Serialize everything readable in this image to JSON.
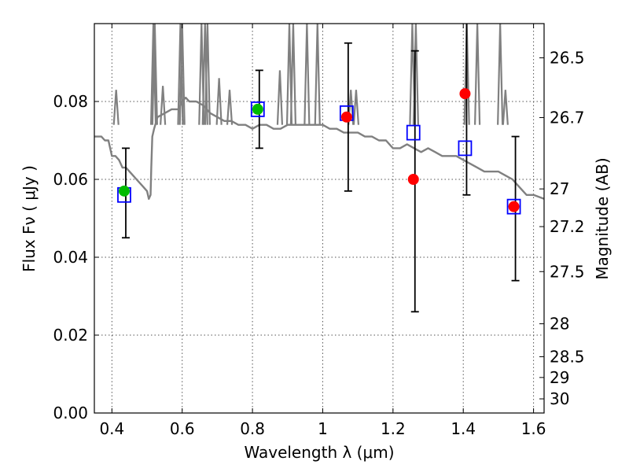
{
  "chart_data": {
    "type": "scatter",
    "title": "",
    "xlabel": "Wavelength  λ (μm)",
    "ylabel": "Flux  Fν  ( μJy )",
    "y2label": "Magnitude (AB)",
    "xlim": [
      0.35,
      1.63
    ],
    "ylim": [
      0.0,
      0.1
    ],
    "grid": true,
    "x_ticks": [
      0.4,
      0.6,
      0.8,
      1.0,
      1.2,
      1.4,
      1.6
    ],
    "x_tick_labels": [
      "0.4",
      "0.6",
      "0.8",
      "1",
      "1.2",
      "1.4",
      "1.6"
    ],
    "y_ticks": [
      0.0,
      0.02,
      0.04,
      0.06,
      0.08
    ],
    "y_tick_labels": [
      "0.00",
      "0.02",
      "0.04",
      "0.06",
      "0.08"
    ],
    "y2_ticks": [
      26.5,
      26.7,
      27.0,
      27.2,
      27.5,
      28.0,
      28.5,
      29.0,
      30.0
    ],
    "y2_tick_labels": [
      "26.5",
      "26.7",
      "27",
      "27.2",
      "27.5",
      "28",
      "28.5",
      "29",
      "30"
    ],
    "series": [
      {
        "marker": "line",
        "color": "#808080",
        "x": [
          0.35,
          0.37,
          0.38,
          0.39,
          0.4,
          0.41,
          0.42,
          0.43,
          0.44,
          0.45,
          0.46,
          0.47,
          0.48,
          0.49,
          0.5,
          0.505,
          0.51,
          0.512,
          0.515,
          0.52,
          0.53,
          0.55,
          0.57,
          0.59,
          0.6,
          0.61,
          0.62,
          0.64,
          0.66,
          0.68,
          0.7,
          0.72,
          0.74,
          0.76,
          0.78,
          0.8,
          0.82,
          0.84,
          0.86,
          0.88,
          0.9,
          0.92,
          0.94,
          0.96,
          0.98,
          1.0,
          1.02,
          1.04,
          1.06,
          1.08,
          1.1,
          1.12,
          1.14,
          1.16,
          1.18,
          1.2,
          1.22,
          1.24,
          1.26,
          1.28,
          1.3,
          1.32,
          1.34,
          1.36,
          1.38,
          1.4,
          1.42,
          1.44,
          1.46,
          1.48,
          1.5,
          1.52,
          1.54,
          1.56,
          1.58,
          1.6,
          1.63
        ],
        "y": [
          0.071,
          0.071,
          0.07,
          0.07,
          0.066,
          0.066,
          0.065,
          0.063,
          0.063,
          0.062,
          0.061,
          0.06,
          0.059,
          0.058,
          0.057,
          0.055,
          0.056,
          0.063,
          0.071,
          0.073,
          0.076,
          0.077,
          0.078,
          0.078,
          0.08,
          0.081,
          0.08,
          0.08,
          0.079,
          0.077,
          0.076,
          0.075,
          0.075,
          0.074,
          0.074,
          0.073,
          0.074,
          0.074,
          0.073,
          0.073,
          0.074,
          0.074,
          0.074,
          0.074,
          0.074,
          0.074,
          0.073,
          0.073,
          0.072,
          0.072,
          0.072,
          0.071,
          0.071,
          0.07,
          0.07,
          0.068,
          0.068,
          0.069,
          0.068,
          0.067,
          0.068,
          0.067,
          0.066,
          0.066,
          0.066,
          0.065,
          0.064,
          0.063,
          0.062,
          0.062,
          0.062,
          0.061,
          0.06,
          0.058,
          0.056,
          0.056,
          0.055
        ]
      },
      {
        "marker": "square-open",
        "color": "#0000ff",
        "x": [
          0.435,
          0.815,
          1.068,
          1.258,
          1.405,
          1.544
        ],
        "y": [
          0.056,
          0.078,
          0.077,
          0.072,
          0.068,
          0.053
        ]
      },
      {
        "marker": "circle-filled",
        "color": "#00bb00",
        "x": [
          0.435,
          0.815
        ],
        "y": [
          0.057,
          0.078
        ],
        "err_low": [
          0.045,
          0.068
        ],
        "err_high": [
          0.068,
          0.088
        ]
      },
      {
        "marker": "circle-filled",
        "color": "#ff0000",
        "x": [
          1.068,
          1.258,
          1.405,
          1.544
        ],
        "y": [
          0.076,
          0.06,
          0.082,
          0.053
        ],
        "err_low": [
          0.057,
          0.026,
          0.056,
          0.034
        ],
        "err_high": [
          0.095,
          0.093,
          0.1,
          0.071
        ]
      }
    ]
  }
}
